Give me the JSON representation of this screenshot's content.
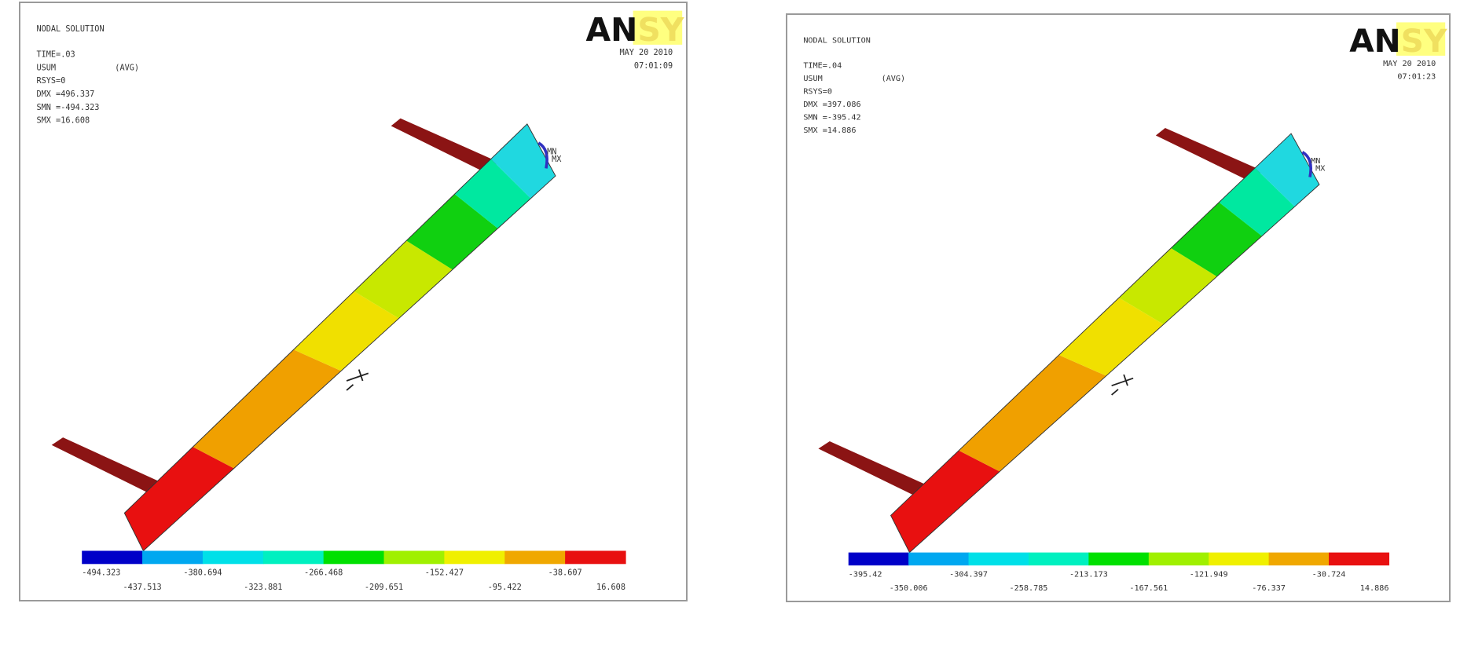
{
  "panels": [
    {
      "title": "NODAL SOLUTION",
      "time": "TIME=.03",
      "quantity": "USUM",
      "avg": "(AVG)",
      "rsys": "RSYS=0",
      "dmx": "DMX =496.337",
      "smn": "SMN =-494.323",
      "smx": "SMX =16.608",
      "date": "MAY 20 2010",
      "clock": "07:01:09",
      "mn_label": "MN",
      "mx_label": "MX",
      "legend_values": [
        "-494.323",
        "-437.513",
        "-380.694",
        "-323.881",
        "-266.468",
        "-209.651",
        "-152.427",
        "-95.422",
        "-38.607",
        "16.608"
      ]
    },
    {
      "title": "NODAL SOLUTION",
      "time": "TIME=.04",
      "quantity": "USUM",
      "avg": "(AVG)",
      "rsys": "RSYS=0",
      "dmx": "DMX =397.086",
      "smn": "SMN =-395.42",
      "smx": "SMX =14.886",
      "date": "MAY 20 2010",
      "clock": "07:01:23",
      "mn_label": "MN",
      "mx_label": "MX",
      "legend_values": [
        "-395.42",
        "-350.006",
        "-304.397",
        "-258.785",
        "-213.173",
        "-167.561",
        "-121.949",
        "-76.337",
        "-30.724",
        "14.886"
      ]
    }
  ],
  "logo": {
    "part1": "AN",
    "part2": "SYS"
  },
  "colors": {
    "legend": [
      "#0000c8",
      "#00a8f0",
      "#00e0e8",
      "#00f0c0",
      "#00e000",
      "#a0f000",
      "#f0f000",
      "#f0a800",
      "#e81010"
    ],
    "beam_bands": [
      "#e81010",
      "#f0a000",
      "#f0e000",
      "#c8e800",
      "#10d010",
      "#00e8a0",
      "#20d8e0"
    ],
    "arm": "#8b1414",
    "logo_yellow": "#ffff80"
  }
}
